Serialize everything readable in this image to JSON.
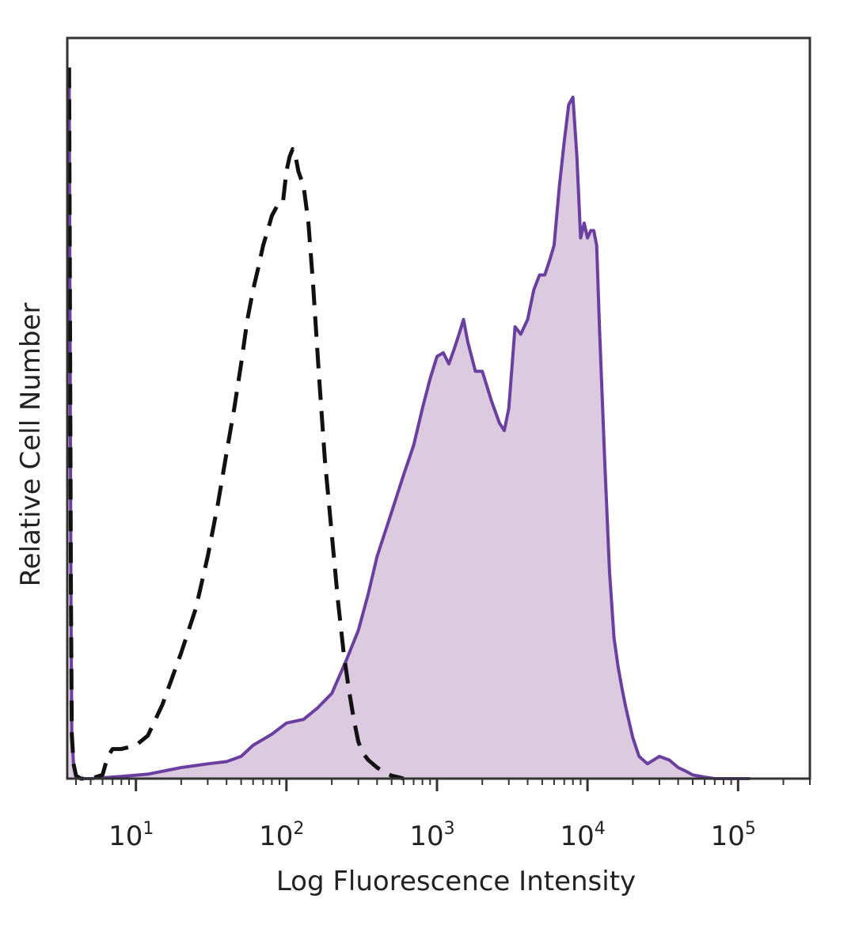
{
  "chart_data": {
    "type": "area",
    "title": "",
    "xlabel": "Log Fluorescence Intensity",
    "ylabel": "Relative Cell Number",
    "x_scale": "log",
    "xlim": [
      3.5,
      300000
    ],
    "ylim": [
      0,
      1
    ],
    "x_ticks": [
      {
        "value": 10,
        "base": "10",
        "exp": "1"
      },
      {
        "value": 100,
        "base": "10",
        "exp": "2"
      },
      {
        "value": 1000,
        "base": "10",
        "exp": "3"
      },
      {
        "value": 10000,
        "base": "10",
        "exp": "4"
      },
      {
        "value": 100000,
        "base": "10",
        "exp": "5"
      }
    ],
    "grid": false,
    "legend": "none",
    "series": [
      {
        "style": "filled-solid",
        "color": "#6b3fa0",
        "fill": "#dccbe0",
        "x": [
          3.6,
          3.65,
          3.7,
          3.75,
          3.85,
          4.0,
          4.3,
          5,
          8,
          12,
          20,
          30,
          40,
          50,
          60,
          80,
          100,
          130,
          160,
          200,
          250,
          300,
          350,
          400,
          500,
          600,
          700,
          800,
          900,
          1000,
          1100,
          1200,
          1300,
          1400,
          1500,
          1600,
          1800,
          2000,
          2300,
          2600,
          2800,
          3000,
          3300,
          3600,
          4000,
          4400,
          4800,
          5200,
          5600,
          6000,
          6500,
          7000,
          7500,
          8000,
          8500,
          9000,
          9500,
          10000,
          10500,
          11000,
          11500,
          12000,
          13000,
          14000,
          15000,
          16000,
          17000,
          18000,
          20000,
          22000,
          25000,
          30000,
          35000,
          40000,
          45000,
          50000,
          60000,
          70000,
          80000,
          100000,
          110000,
          120000
        ],
        "y": [
          0.96,
          0.6,
          0.25,
          0.06,
          0.02,
          0.004,
          0.0,
          0.0,
          0.003,
          0.006,
          0.015,
          0.02,
          0.023,
          0.03,
          0.045,
          0.06,
          0.075,
          0.08,
          0.095,
          0.115,
          0.16,
          0.2,
          0.25,
          0.3,
          0.36,
          0.41,
          0.45,
          0.5,
          0.54,
          0.57,
          0.575,
          0.56,
          0.58,
          0.6,
          0.62,
          0.59,
          0.55,
          0.55,
          0.51,
          0.48,
          0.47,
          0.5,
          0.61,
          0.6,
          0.62,
          0.66,
          0.68,
          0.68,
          0.7,
          0.72,
          0.8,
          0.86,
          0.91,
          0.92,
          0.84,
          0.73,
          0.75,
          0.73,
          0.74,
          0.74,
          0.72,
          0.61,
          0.43,
          0.28,
          0.19,
          0.15,
          0.12,
          0.095,
          0.055,
          0.03,
          0.02,
          0.03,
          0.025,
          0.015,
          0.01,
          0.005,
          0.002,
          0.0,
          0.0,
          0.0,
          0.0,
          0.0
        ]
      },
      {
        "style": "dashed",
        "color": "#111111",
        "x": [
          3.6,
          3.65,
          3.7,
          3.75,
          3.85,
          4.0,
          4.3,
          5,
          6,
          6.5,
          7,
          8,
          10,
          12,
          15,
          20,
          25,
          30,
          35,
          40,
          45,
          50,
          55,
          60,
          65,
          70,
          75,
          80,
          85,
          90,
          95,
          100,
          105,
          110,
          115,
          120,
          130,
          140,
          150,
          165,
          180,
          200,
          220,
          240,
          260,
          280,
          300,
          320,
          350,
          400,
          450,
          500,
          550,
          600
        ],
        "y": [
          0.96,
          0.6,
          0.25,
          0.06,
          0.02,
          0.004,
          0.0,
          0.0,
          0.005,
          0.03,
          0.04,
          0.04,
          0.045,
          0.058,
          0.1,
          0.17,
          0.23,
          0.3,
          0.37,
          0.44,
          0.5,
          0.56,
          0.62,
          0.66,
          0.69,
          0.72,
          0.74,
          0.76,
          0.77,
          0.78,
          0.78,
          0.82,
          0.84,
          0.85,
          0.84,
          0.82,
          0.8,
          0.75,
          0.67,
          0.54,
          0.43,
          0.33,
          0.24,
          0.17,
          0.12,
          0.08,
          0.05,
          0.035,
          0.025,
          0.015,
          0.008,
          0.004,
          0.002,
          0.0
        ]
      }
    ]
  }
}
